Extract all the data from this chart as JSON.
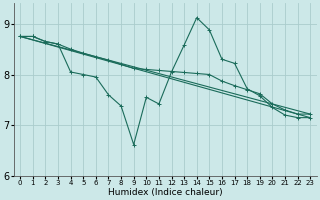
{
  "xlabel": "Humidex (Indice chaleur)",
  "bg_color": "#cce8e8",
  "grid_color": "#aacccc",
  "line_color": "#1a6b5a",
  "xlim": [
    -0.5,
    23.5
  ],
  "ylim": [
    6,
    9.4
  ],
  "yticks": [
    6,
    7,
    8,
    9
  ],
  "xticks": [
    0,
    1,
    2,
    3,
    4,
    5,
    6,
    7,
    8,
    9,
    10,
    11,
    12,
    13,
    14,
    15,
    16,
    17,
    18,
    19,
    20,
    21,
    22,
    23
  ],
  "lines": [
    {
      "x": [
        0,
        1,
        2,
        3,
        4,
        5,
        6,
        7,
        8,
        9,
        10,
        11,
        12,
        13,
        14,
        15,
        16,
        17,
        18,
        19,
        20,
        21,
        22,
        23
      ],
      "y": [
        8.75,
        8.75,
        8.65,
        8.6,
        8.5,
        8.42,
        8.35,
        8.28,
        8.2,
        8.12,
        8.1,
        8.08,
        8.06,
        8.04,
        8.02,
        8.0,
        7.87,
        7.78,
        7.7,
        7.62,
        7.42,
        7.3,
        7.22,
        7.22
      ],
      "marker": true
    },
    {
      "x": [
        0,
        1,
        2,
        3,
        4,
        5,
        6,
        7,
        8,
        9,
        10,
        11,
        12,
        13,
        14,
        15,
        16,
        17,
        18,
        19,
        20,
        21,
        22,
        23
      ],
      "y": [
        8.75,
        8.75,
        8.65,
        8.6,
        8.05,
        8.0,
        7.95,
        7.6,
        7.38,
        6.62,
        7.55,
        7.42,
        8.05,
        8.58,
        9.12,
        8.88,
        8.3,
        8.22,
        7.72,
        7.58,
        7.35,
        7.2,
        7.15,
        7.15
      ],
      "marker": true
    },
    {
      "x": [
        0,
        23
      ],
      "y": [
        8.75,
        7.22
      ],
      "marker": false
    },
    {
      "x": [
        0,
        23
      ],
      "y": [
        8.75,
        7.15
      ],
      "marker": false
    }
  ]
}
